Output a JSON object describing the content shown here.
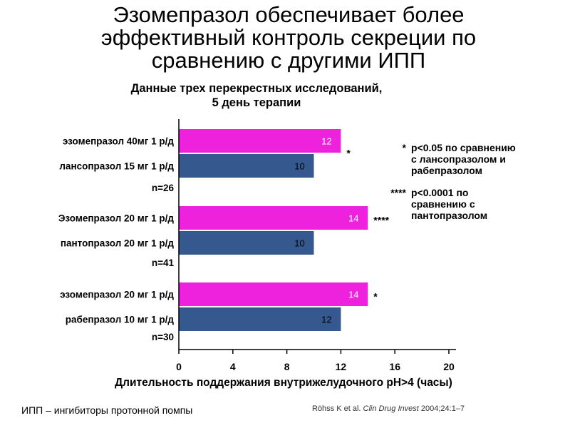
{
  "title": {
    "lines": [
      "Эзомепразол обеспечивает более",
      "эффективный контроль секреции по",
      "сравнению с другими ИПП"
    ]
  },
  "subtitle": {
    "lines": [
      "Данные трех перекрестных исследований,",
      "5 день терапии"
    ]
  },
  "colors": {
    "esomeprazole": "#ee22dd",
    "comparator": "#35598e",
    "esomeprazole_label": "#ffffff",
    "comparator_label": "#000000"
  },
  "chart_data": {
    "type": "bar",
    "orientation": "horizontal",
    "xlabel": "Длительность поддержания внутрижелудочного рН>4 (часы)",
    "xlim": [
      0,
      20
    ],
    "xticks": [
      0,
      4,
      8,
      12,
      16,
      20
    ],
    "grid": false,
    "groups": [
      {
        "n_label": "n=26",
        "bars": [
          {
            "label": "эзомепразол 40мг 1 р/д",
            "value": 12,
            "series": "esomeprazole",
            "value_label": "12",
            "mark": "*"
          },
          {
            "label": "лансопразол 15 мг 1 р/д",
            "value": 10,
            "series": "comparator",
            "value_label": "10",
            "mark": ""
          }
        ]
      },
      {
        "n_label": "n=41",
        "bars": [
          {
            "label": "Эзомепразол 20 мг 1 р/д",
            "value": 14,
            "series": "esomeprazole",
            "value_label": "14",
            "mark": "****"
          },
          {
            "label": "пантопразол 20 мг 1 р/д",
            "value": 10,
            "series": "comparator",
            "value_label": "10",
            "mark": ""
          }
        ]
      },
      {
        "n_label": "n=30",
        "bars": [
          {
            "label": "эзомепразол 20 мг 1 р/д",
            "value": 14,
            "series": "esomeprazole",
            "value_label": "14",
            "mark": "*"
          },
          {
            "label": "рабепразол 10 мг 1 р/д",
            "value": 12,
            "series": "comparator",
            "value_label": "12",
            "mark": ""
          }
        ]
      }
    ]
  },
  "legend": {
    "notes": [
      {
        "mark": "*",
        "lines": [
          "р<0.05 по сравнению",
          "с лансопразолом  и",
          "рабепразолом"
        ]
      },
      {
        "mark": "****",
        "lines": [
          "р<0.0001 по",
          "сравнению с",
          "пантопразолом"
        ]
      }
    ]
  },
  "footnote": "ИПП – ингибиторы протонной помпы",
  "citation": {
    "authors": "Röhss K et al.",
    "journal": "Clin Drug Invest",
    "ref": "2004;24:1–7"
  }
}
